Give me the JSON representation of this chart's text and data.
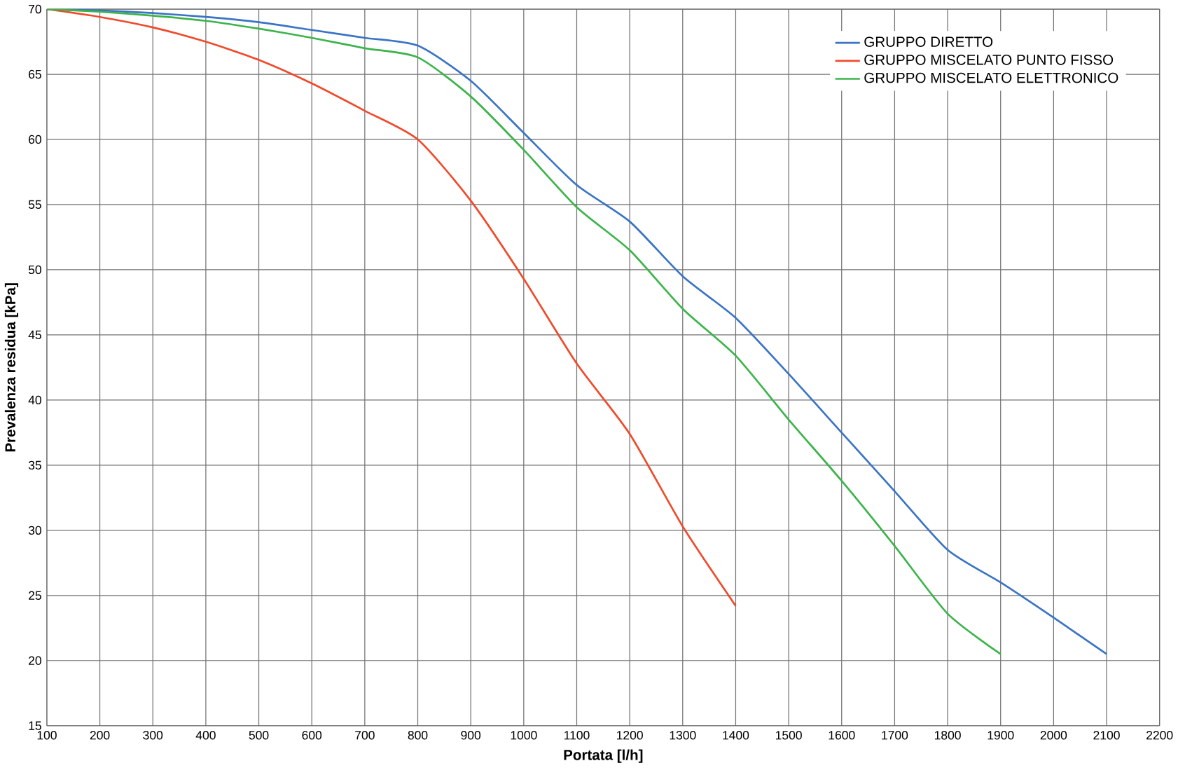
{
  "chart_data": {
    "type": "line",
    "xlabel": "Portata [l/h]",
    "ylabel": "Prevalenza residua [kPa]",
    "xlim": [
      100,
      2200
    ],
    "xticks": [
      100,
      200,
      300,
      400,
      500,
      600,
      700,
      800,
      900,
      1000,
      1100,
      1200,
      1300,
      1400,
      1500,
      1600,
      1700,
      1800,
      1900,
      2000,
      2100,
      2200
    ],
    "ylim": [
      15,
      70
    ],
    "yticks": [
      15,
      20,
      25,
      30,
      35,
      40,
      45,
      50,
      55,
      60,
      65,
      70
    ],
    "grid": true,
    "legend": "top right",
    "marker": "none",
    "line_style": "solid",
    "series": [
      {
        "name": "GRUPPO DIRETTO",
        "color": "#3a74c4",
        "x": [
          100,
          200,
          300,
          400,
          500,
          600,
          700,
          800,
          900,
          1000,
          1100,
          1200,
          1300,
          1400,
          1500,
          1600,
          1700,
          1800,
          1900,
          2000,
          2100
        ],
        "values": [
          70,
          69.9,
          69.7,
          69.4,
          69.0,
          68.4,
          67.8,
          67.2,
          64.5,
          60.5,
          56.5,
          53.7,
          49.5,
          46.3,
          42,
          37.5,
          33,
          28.5,
          26,
          23.3,
          20.5
        ]
      },
      {
        "name": "GRUPPO MISCELATO PUNTO FISSO",
        "color": "#f04a2a",
        "x": [
          100,
          200,
          300,
          400,
          500,
          600,
          700,
          800,
          900,
          1000,
          1100,
          1200,
          1300,
          1400
        ],
        "values": [
          70,
          69.4,
          68.6,
          67.5,
          66.1,
          64.3,
          62.2,
          60,
          55.3,
          49.3,
          42.8,
          37.4,
          30.3,
          24.2
        ]
      },
      {
        "name": "GRUPPO MISCELATO ELETTRONICO",
        "color": "#3cb44b",
        "x": [
          100,
          200,
          300,
          400,
          500,
          600,
          700,
          800,
          900,
          1000,
          1100,
          1200,
          1300,
          1400,
          1500,
          1600,
          1700,
          1800,
          1900
        ],
        "values": [
          70,
          69.8,
          69.5,
          69.1,
          68.5,
          67.8,
          67.0,
          66.3,
          63.3,
          59.2,
          54.8,
          51.5,
          47,
          43.4,
          38.5,
          33.8,
          28.8,
          23.6,
          20.5
        ]
      }
    ]
  }
}
